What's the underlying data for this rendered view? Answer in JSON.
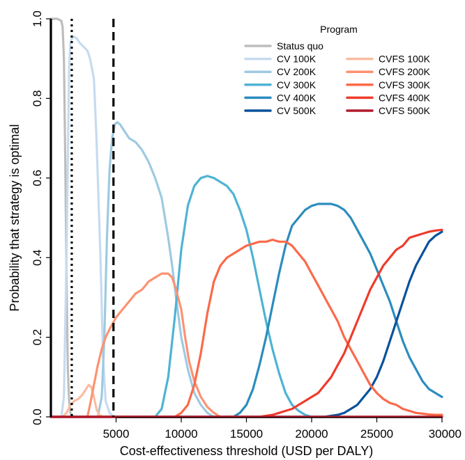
{
  "chart_data": {
    "type": "line",
    "xlabel": "Cost-effectiveness threshold (USD per DALY)",
    "ylabel": "Probability that strategy is optimal",
    "xlim": [
      0,
      30000
    ],
    "ylim": [
      0,
      1
    ],
    "x_ticks": [
      5000,
      10000,
      15000,
      20000,
      25000,
      30000
    ],
    "x_tick_labels": [
      "5000",
      "10000",
      "15000",
      "20000",
      "25000",
      "30000"
    ],
    "y_ticks": [
      0,
      0.2,
      0.4,
      0.6,
      0.8,
      1.0
    ],
    "y_tick_labels": [
      "0.0",
      "0.2",
      "0.4",
      "0.6",
      "0.8",
      "1.0"
    ],
    "grid": false,
    "legend": {
      "title": "Program",
      "position": "top-right",
      "columns": 2
    },
    "vertical_lines": [
      {
        "x": 0,
        "style": "solid",
        "color": "#000000"
      },
      {
        "x": 1600,
        "style": "dotted",
        "color": "#000000"
      },
      {
        "x": 4800,
        "style": "dashed",
        "color": "#000000"
      }
    ],
    "series": [
      {
        "name": "Status quo",
        "color": "#bdbdbd",
        "x": [
          0,
          500,
          800,
          900,
          1000,
          1100,
          1200,
          1300,
          1400,
          1500,
          1700,
          30000
        ],
        "y": [
          1.0,
          1.0,
          0.995,
          0.98,
          0.9,
          0.65,
          0.35,
          0.12,
          0.04,
          0.01,
          0.0,
          0.0
        ]
      },
      {
        "name": "CV 100K",
        "color": "#c6dbef",
        "x": [
          0,
          800,
          1000,
          1200,
          1400,
          1500,
          1600,
          1800,
          2000,
          2200,
          2500,
          2800,
          3000,
          3300,
          3500,
          3800,
          4000,
          4200,
          4500,
          4800,
          5000,
          30000
        ],
        "y": [
          0,
          0,
          0.05,
          0.4,
          0.88,
          0.94,
          0.95,
          0.955,
          0.95,
          0.94,
          0.93,
          0.92,
          0.9,
          0.85,
          0.7,
          0.4,
          0.15,
          0.04,
          0.01,
          0.0,
          0.0,
          0.0
        ]
      },
      {
        "name": "CV 200K",
        "color": "#9ecae1",
        "x": [
          0,
          3600,
          3900,
          4100,
          4300,
          4500,
          4700,
          4900,
          5100,
          5300,
          5600,
          6000,
          6500,
          7000,
          7500,
          8000,
          8500,
          9000,
          9300,
          9600,
          10000,
          10500,
          11000,
          11500,
          12000,
          12500,
          30000
        ],
        "y": [
          0,
          0,
          0.05,
          0.2,
          0.45,
          0.62,
          0.7,
          0.735,
          0.74,
          0.735,
          0.72,
          0.7,
          0.69,
          0.67,
          0.64,
          0.6,
          0.55,
          0.45,
          0.38,
          0.3,
          0.2,
          0.12,
          0.06,
          0.03,
          0.01,
          0.0,
          0.0
        ]
      },
      {
        "name": "CV 300K",
        "color": "#4eb3d3",
        "x": [
          0,
          8000,
          8500,
          9000,
          9500,
          10000,
          10500,
          11000,
          11500,
          12000,
          12500,
          13000,
          13500,
          14000,
          14500,
          15000,
          15500,
          16000,
          16500,
          17000,
          17500,
          18000,
          18500,
          19000,
          19500,
          20000,
          30000
        ],
        "y": [
          0,
          0,
          0.02,
          0.1,
          0.25,
          0.42,
          0.53,
          0.58,
          0.6,
          0.605,
          0.6,
          0.59,
          0.58,
          0.56,
          0.52,
          0.47,
          0.4,
          0.32,
          0.24,
          0.17,
          0.11,
          0.06,
          0.03,
          0.015,
          0.005,
          0.0,
          0.0
        ]
      },
      {
        "name": "CV 400K",
        "color": "#2b8cbe",
        "x": [
          0,
          14000,
          14500,
          15000,
          15500,
          16000,
          16500,
          17000,
          17500,
          18000,
          18500,
          19000,
          19500,
          20000,
          20500,
          21000,
          21500,
          22000,
          22500,
          23000,
          23500,
          24000,
          24500,
          25000,
          25500,
          26000,
          26500,
          27000,
          27500,
          28000,
          28500,
          29000,
          29500,
          30000
        ],
        "y": [
          0,
          0,
          0.01,
          0.03,
          0.07,
          0.13,
          0.2,
          0.28,
          0.36,
          0.43,
          0.48,
          0.5,
          0.52,
          0.53,
          0.535,
          0.535,
          0.535,
          0.53,
          0.52,
          0.5,
          0.47,
          0.44,
          0.41,
          0.37,
          0.33,
          0.29,
          0.24,
          0.19,
          0.15,
          0.12,
          0.09,
          0.07,
          0.06,
          0.05
        ]
      },
      {
        "name": "CVFS 100K",
        "color": "#fcbba1",
        "x": [
          0,
          900,
          1200,
          1500,
          1800,
          2100,
          2400,
          2700,
          2900,
          3100,
          3300,
          3500,
          3700,
          4000,
          30000
        ],
        "y": [
          0,
          0,
          0.01,
          0.03,
          0.04,
          0.045,
          0.055,
          0.07,
          0.08,
          0.075,
          0.05,
          0.02,
          0.005,
          0.0,
          0.0
        ]
      },
      {
        "name": "CVFS 200K",
        "color": "#fc9272",
        "x": [
          0,
          2800,
          3000,
          3300,
          3600,
          3900,
          4200,
          4500,
          5000,
          5500,
          6000,
          6500,
          7000,
          7500,
          8000,
          8500,
          9000,
          9300,
          9600,
          10000,
          10300,
          10600,
          11000,
          11500,
          12000,
          12500,
          13000,
          30000
        ],
        "y": [
          0,
          0,
          0.03,
          0.08,
          0.13,
          0.17,
          0.2,
          0.22,
          0.25,
          0.27,
          0.29,
          0.31,
          0.32,
          0.34,
          0.35,
          0.36,
          0.36,
          0.35,
          0.32,
          0.27,
          0.2,
          0.14,
          0.09,
          0.05,
          0.025,
          0.01,
          0.0,
          0.0
        ]
      },
      {
        "name": "CV 500K",
        "color": "#08519c",
        "x": [
          0,
          21000,
          22000,
          22500,
          23000,
          23500,
          24000,
          24500,
          25000,
          25500,
          26000,
          26500,
          27000,
          27500,
          28000,
          28500,
          29000,
          29500,
          30000
        ],
        "y": [
          0,
          0,
          0.005,
          0.01,
          0.02,
          0.03,
          0.05,
          0.07,
          0.1,
          0.14,
          0.19,
          0.24,
          0.29,
          0.34,
          0.38,
          0.41,
          0.44,
          0.455,
          0.465
        ]
      },
      {
        "name": "CVFS 300K",
        "color": "#fb6a4a",
        "x": [
          0,
          9500,
          10000,
          10500,
          11000,
          11500,
          12000,
          12500,
          13000,
          13500,
          14000,
          14500,
          15000,
          15500,
          16000,
          16500,
          17000,
          17500,
          18000,
          18500,
          19000,
          19500,
          20000,
          20500,
          21000,
          21500,
          22000,
          22500,
          23000,
          23500,
          24000,
          24500,
          25000,
          25500,
          26000,
          26500,
          27000,
          27500,
          28000,
          28500,
          29000,
          29500,
          30000
        ],
        "y": [
          0,
          0,
          0.01,
          0.03,
          0.08,
          0.16,
          0.26,
          0.34,
          0.38,
          0.4,
          0.41,
          0.42,
          0.43,
          0.435,
          0.44,
          0.44,
          0.445,
          0.44,
          0.44,
          0.43,
          0.41,
          0.39,
          0.36,
          0.33,
          0.3,
          0.27,
          0.24,
          0.2,
          0.17,
          0.14,
          0.11,
          0.08,
          0.06,
          0.045,
          0.035,
          0.03,
          0.02,
          0.015,
          0.01,
          0.008,
          0.006,
          0.005,
          0.005
        ]
      },
      {
        "name": "CVFS 400K",
        "color": "#ef3b2c",
        "x": [
          0,
          16000,
          17000,
          17500,
          18000,
          18500,
          19000,
          19500,
          20000,
          20500,
          21000,
          21500,
          22000,
          22500,
          23000,
          23500,
          24000,
          24500,
          25000,
          25500,
          26000,
          26500,
          27000,
          27500,
          28000,
          28500,
          29000,
          29500,
          30000
        ],
        "y": [
          0,
          0,
          0.005,
          0.01,
          0.015,
          0.02,
          0.03,
          0.04,
          0.05,
          0.06,
          0.08,
          0.1,
          0.13,
          0.16,
          0.2,
          0.24,
          0.28,
          0.32,
          0.35,
          0.38,
          0.4,
          0.42,
          0.43,
          0.45,
          0.455,
          0.46,
          0.465,
          0.468,
          0.47
        ]
      },
      {
        "name": "CVFS 500K",
        "color": "#b2182b",
        "x": [
          0,
          30000
        ],
        "y": [
          0.0,
          0.0
        ]
      }
    ],
    "legend_order": [
      [
        "Status quo",
        null
      ],
      [
        "CV 100K",
        "CVFS 100K"
      ],
      [
        "CV 200K",
        "CVFS 200K"
      ],
      [
        "CV 300K",
        "CVFS 300K"
      ],
      [
        "CV 400K",
        "CVFS 400K"
      ],
      [
        "CV 500K",
        "CVFS 500K"
      ]
    ]
  }
}
